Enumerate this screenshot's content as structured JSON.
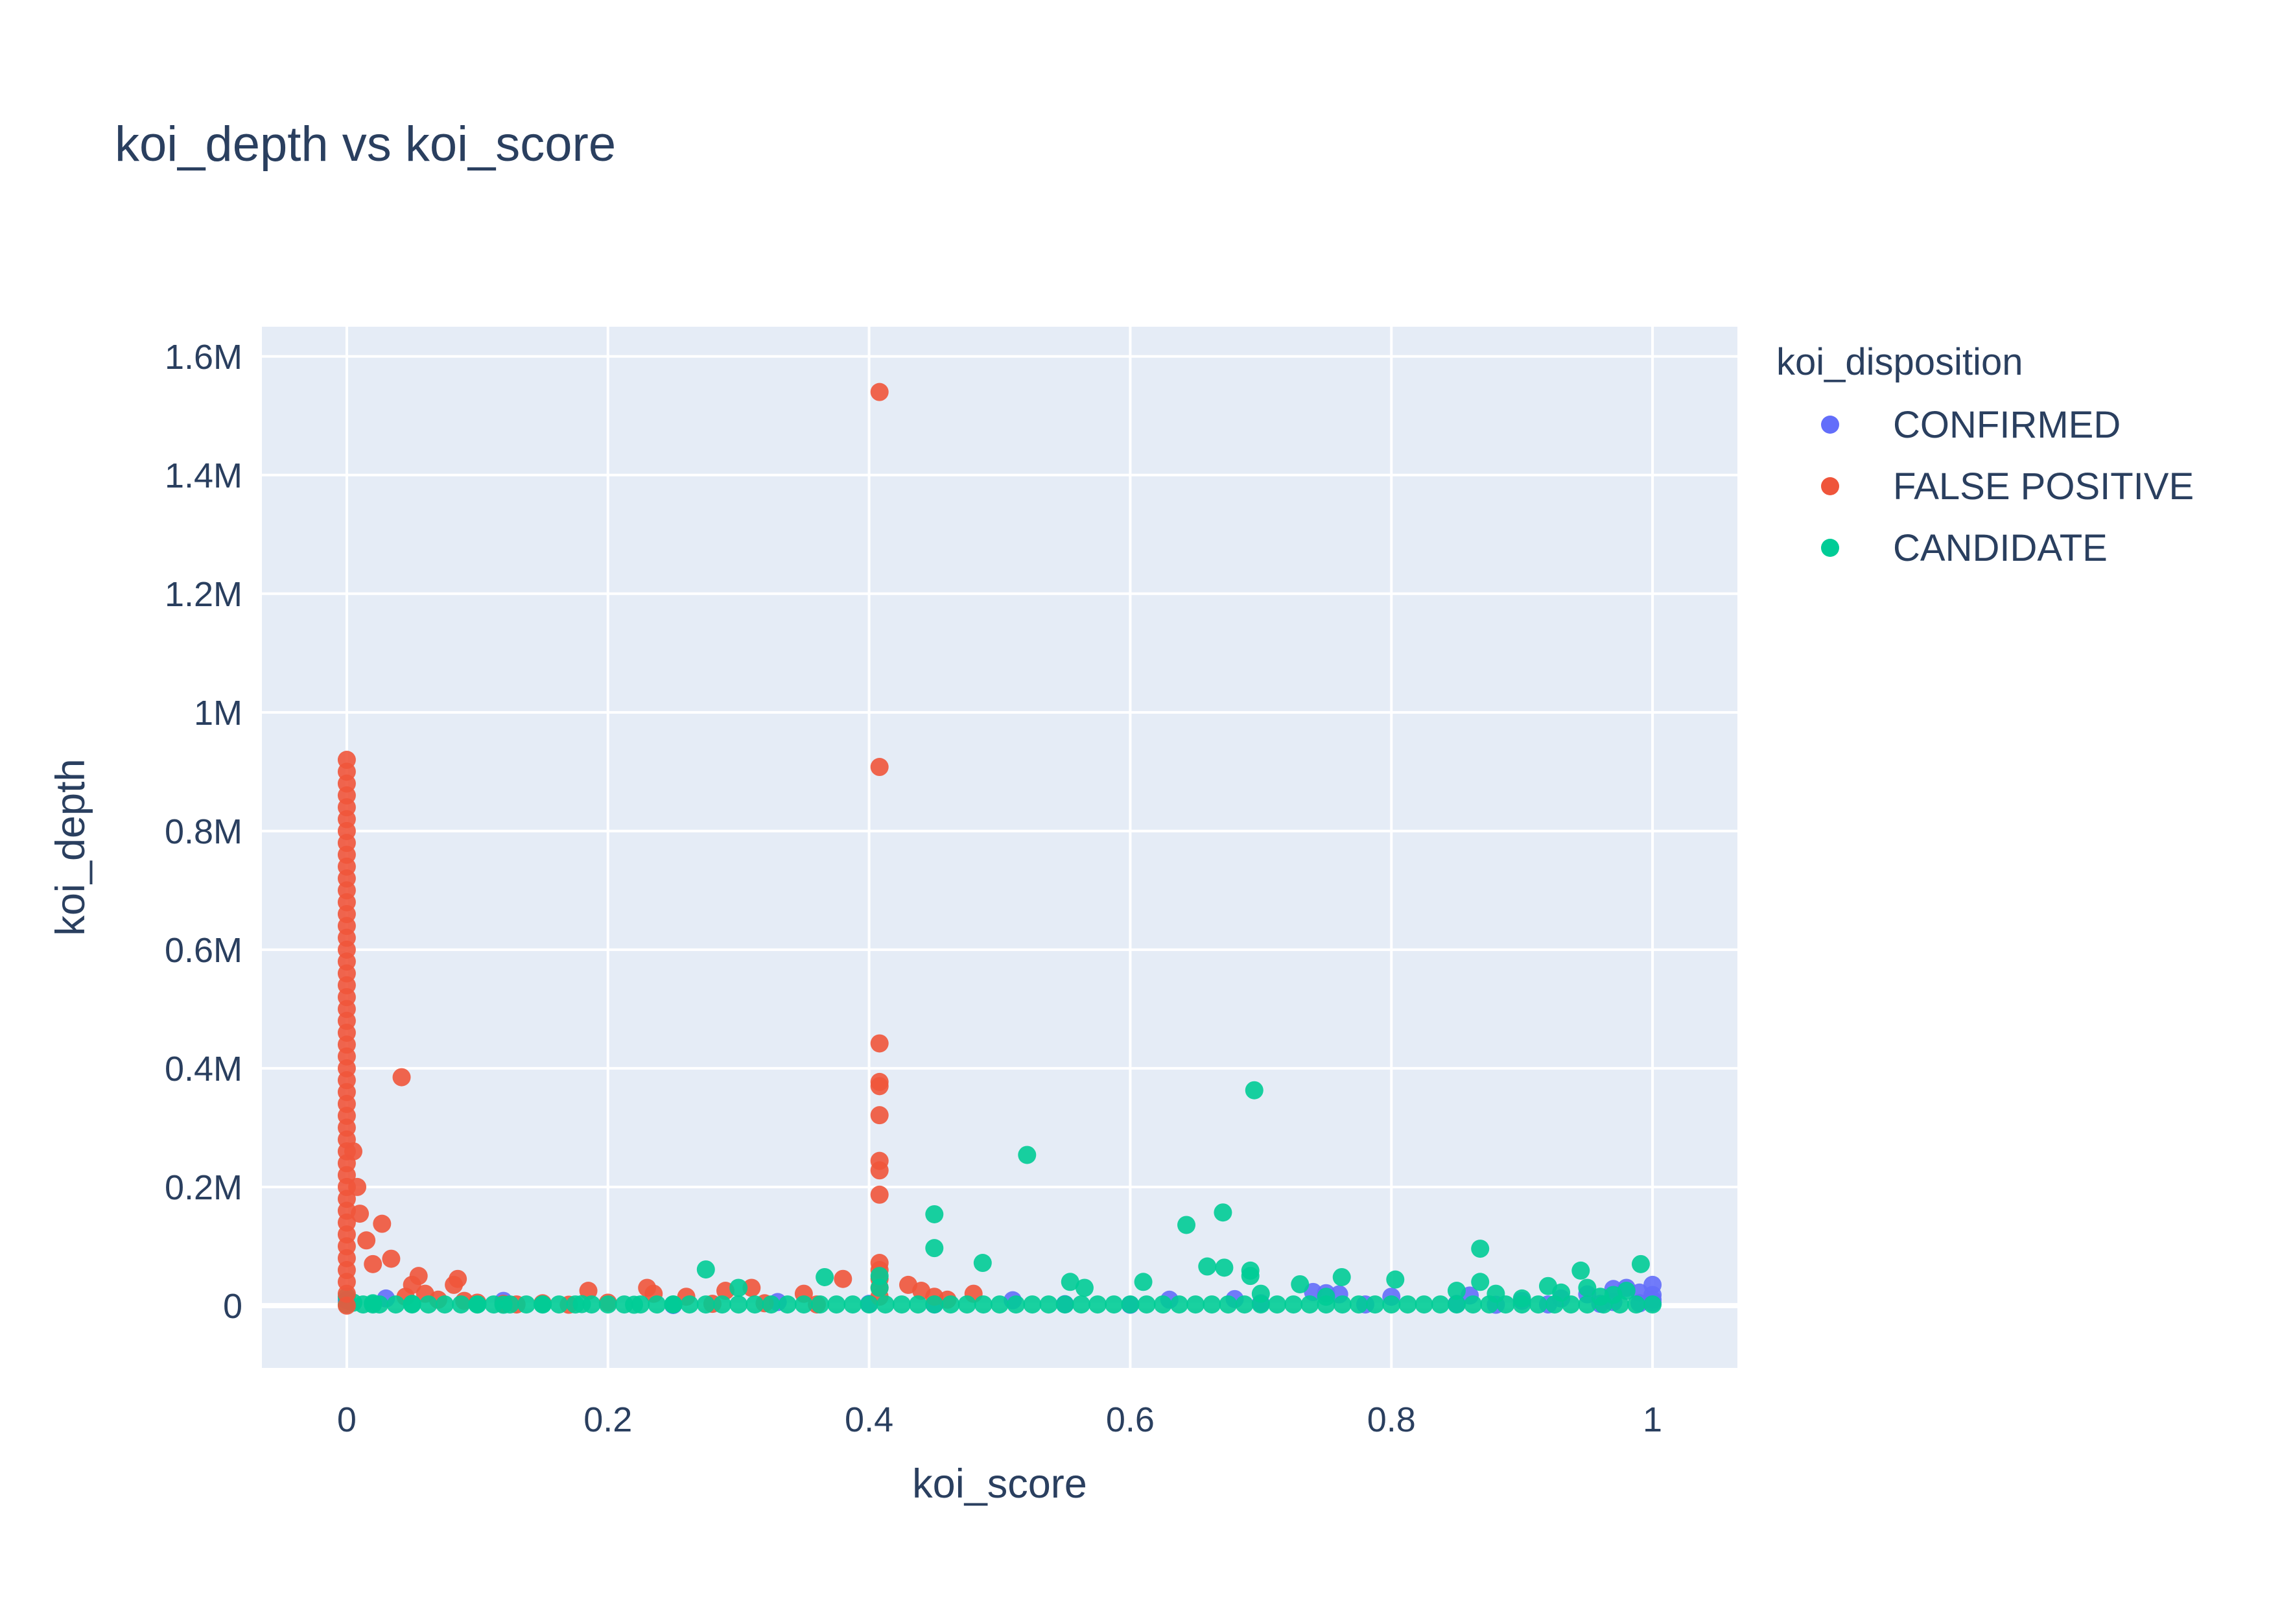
{
  "chart_data": {
    "type": "scatter",
    "title": "koi_depth vs koi_score",
    "xlabel": "koi_score",
    "ylabel": "koi_depth",
    "xlim": [
      -0.065,
      1.065
    ],
    "ylim": [
      -105000,
      1650000
    ],
    "x_ticks": [
      0,
      0.2,
      0.4,
      0.6,
      0.8,
      1
    ],
    "x_tick_labels": [
      "0",
      "0.2",
      "0.4",
      "0.6",
      "0.8",
      "1"
    ],
    "y_ticks": [
      0,
      200000,
      400000,
      600000,
      800000,
      1000000,
      1200000,
      1400000,
      1600000
    ],
    "y_tick_labels": [
      "0",
      "0.2M",
      "0.4M",
      "0.6M",
      "0.8M",
      "1M",
      "1.2M",
      "1.4M",
      "1.6M"
    ],
    "grid": true,
    "legend": {
      "title": "koi_disposition",
      "placement": "right",
      "entries": [
        "CONFIRMED",
        "FALSE POSITIVE",
        "CANDIDATE"
      ]
    },
    "series": [
      {
        "name": "CONFIRMED",
        "color": "#636efa",
        "points": [
          [
            0.0,
            9000
          ],
          [
            0.03,
            12000
          ],
          [
            0.12,
            8000
          ],
          [
            0.33,
            6000
          ],
          [
            0.51,
            9000
          ],
          [
            0.63,
            10000
          ],
          [
            0.68,
            11000
          ],
          [
            0.74,
            23000
          ],
          [
            0.75,
            21000
          ],
          [
            0.76,
            19000
          ],
          [
            0.8,
            15000
          ],
          [
            0.86,
            17000
          ],
          [
            0.9,
            8000
          ],
          [
            0.93,
            12000
          ],
          [
            0.95,
            19000
          ],
          [
            0.97,
            28000
          ],
          [
            0.98,
            30000
          ],
          [
            0.99,
            22000
          ],
          [
            1.0,
            35000
          ],
          [
            1.0,
            18000
          ],
          [
            1.0,
            10000
          ],
          [
            1.0,
            5000
          ],
          [
            0.99,
            4000
          ],
          [
            0.97,
            6000
          ],
          [
            0.96,
            3000
          ],
          [
            0.92,
            2000
          ],
          [
            0.88,
            1500
          ],
          [
            0.85,
            3000
          ],
          [
            0.78,
            2000
          ],
          [
            0.7,
            4000
          ],
          [
            0.6,
            1500
          ],
          [
            0.55,
            2500
          ],
          [
            0.45,
            2000
          ],
          [
            0.4,
            3000
          ],
          [
            0.25,
            1000
          ]
        ]
      },
      {
        "name": "FALSE POSITIVE",
        "color": "#ef553b",
        "points": [
          [
            0.408,
            1540000
          ],
          [
            0.408,
            908000
          ],
          [
            0.408,
            442000
          ],
          [
            0.408,
            377000
          ],
          [
            0.408,
            370000
          ],
          [
            0.408,
            321000
          ],
          [
            0.408,
            244000
          ],
          [
            0.408,
            228000
          ],
          [
            0.408,
            187000
          ],
          [
            0.408,
            72000
          ],
          [
            0.408,
            60000
          ],
          [
            0.408,
            45000
          ],
          [
            0.408,
            30000
          ],
          [
            0.408,
            15000
          ],
          [
            0.042,
            385000
          ],
          [
            0.027,
            138000
          ],
          [
            0.034,
            79000
          ],
          [
            0.015,
            110000
          ],
          [
            0.02,
            70000
          ],
          [
            0.01,
            155000
          ],
          [
            0.005,
            260000
          ],
          [
            0.008,
            200000
          ],
          [
            0.055,
            50000
          ],
          [
            0.085,
            45000
          ],
          [
            0.082,
            35000
          ],
          [
            0.05,
            35000
          ],
          [
            0.06,
            20000
          ],
          [
            0.045,
            15000
          ],
          [
            0.07,
            10000
          ],
          [
            0.09,
            8000
          ],
          [
            0.1,
            5000
          ],
          [
            0.12,
            3000
          ],
          [
            0.15,
            4000
          ],
          [
            0.185,
            25000
          ],
          [
            0.23,
            30000
          ],
          [
            0.235,
            20000
          ],
          [
            0.26,
            15000
          ],
          [
            0.29,
            25000
          ],
          [
            0.31,
            30000
          ],
          [
            0.35,
            20000
          ],
          [
            0.38,
            45000
          ],
          [
            0.43,
            35000
          ],
          [
            0.44,
            25000
          ],
          [
            0.45,
            15000
          ],
          [
            0.46,
            10000
          ],
          [
            0.48,
            20000
          ],
          [
            0.2,
            5000
          ],
          [
            0.13,
            2000
          ],
          [
            0.17,
            1500
          ],
          [
            0.28,
            3000
          ],
          [
            0.32,
            4000
          ],
          [
            0.36,
            2000
          ]
        ]
      },
      {
        "name": "CANDIDATE",
        "color": "#00cc96",
        "points": [
          [
            0.695,
            363000
          ],
          [
            0.521,
            254000
          ],
          [
            0.671,
            157000
          ],
          [
            0.45,
            154000
          ],
          [
            0.643,
            136000
          ],
          [
            0.45,
            97000
          ],
          [
            0.868,
            96000
          ],
          [
            0.487,
            72000
          ],
          [
            0.659,
            66000
          ],
          [
            0.672,
            64000
          ],
          [
            0.275,
            61000
          ],
          [
            0.692,
            59000
          ],
          [
            0.945,
            59000
          ],
          [
            0.991,
            70000
          ],
          [
            0.692,
            50000
          ],
          [
            0.762,
            48000
          ],
          [
            0.366,
            48000
          ],
          [
            0.803,
            44000
          ],
          [
            0.554,
            40000
          ],
          [
            0.61,
            40000
          ],
          [
            0.868,
            40000
          ],
          [
            0.73,
            36000
          ],
          [
            0.92,
            33000
          ],
          [
            0.95,
            30000
          ],
          [
            0.408,
            50000
          ],
          [
            0.408,
            30000
          ],
          [
            0.3,
            30000
          ],
          [
            0.565,
            30000
          ],
          [
            0.7,
            20000
          ],
          [
            0.75,
            15000
          ],
          [
            0.85,
            25000
          ],
          [
            0.88,
            20000
          ],
          [
            0.9,
            12000
          ],
          [
            0.93,
            22000
          ],
          [
            0.97,
            18000
          ],
          [
            0.98,
            25000
          ],
          [
            0.96,
            15000
          ],
          [
            0.0,
            15000
          ],
          [
            0.005,
            5000
          ],
          [
            0.02,
            4000
          ],
          [
            0.02,
            2000
          ],
          [
            0.05,
            3000
          ],
          [
            0.1,
            2000
          ],
          [
            0.12,
            1500
          ],
          [
            0.15,
            2000
          ],
          [
            0.18,
            2500
          ],
          [
            0.22,
            1500
          ],
          [
            0.25,
            2000
          ]
        ]
      }
    ]
  }
}
